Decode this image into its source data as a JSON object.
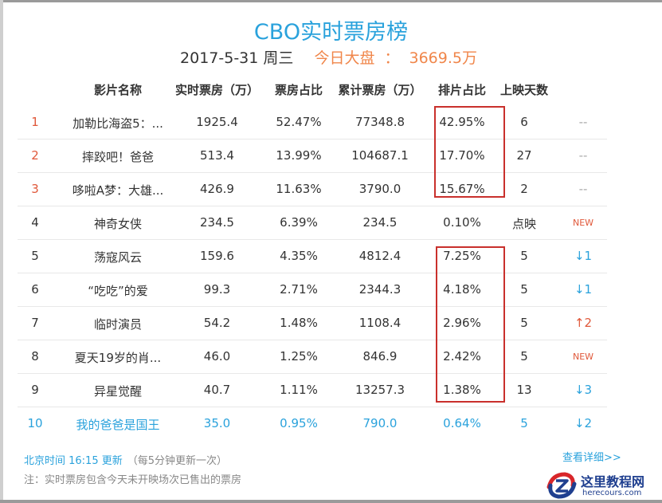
{
  "header": {
    "title": "CBO实时票房榜",
    "date": "2017-5-31 周三",
    "total_label": "今日大盘",
    "total_colon": "：",
    "total_value": "3669.5万"
  },
  "columns": [
    "影片名称",
    "实时票房（万）",
    "票房占比",
    "累计票房（万）",
    "排片占比",
    "上映天数"
  ],
  "rows": [
    {
      "rank": "1",
      "name": "加勒比海盗5：...",
      "realtime": "1925.4",
      "share": "52.47%",
      "cumulative": "77348.8",
      "schedule": "42.95%",
      "days": "6",
      "trend": "--"
    },
    {
      "rank": "2",
      "name": "摔跤吧！爸爸",
      "realtime": "513.4",
      "share": "13.99%",
      "cumulative": "104687.1",
      "schedule": "17.70%",
      "days": "27",
      "trend": "--"
    },
    {
      "rank": "3",
      "name": "哆啦A梦：大雄...",
      "realtime": "426.9",
      "share": "11.63%",
      "cumulative": "3790.0",
      "schedule": "15.67%",
      "days": "2",
      "trend": "--"
    },
    {
      "rank": "4",
      "name": "神奇女侠",
      "realtime": "234.5",
      "share": "6.39%",
      "cumulative": "234.5",
      "schedule": "0.10%",
      "days": "点映",
      "trend": "NEW"
    },
    {
      "rank": "5",
      "name": "荡寇风云",
      "realtime": "159.6",
      "share": "4.35%",
      "cumulative": "4812.4",
      "schedule": "7.25%",
      "days": "5",
      "trend": "↓1"
    },
    {
      "rank": "6",
      "name": "“吃吃”的爱",
      "realtime": "99.3",
      "share": "2.71%",
      "cumulative": "2344.3",
      "schedule": "4.18%",
      "days": "5",
      "trend": "↓1"
    },
    {
      "rank": "7",
      "name": "临时演员",
      "realtime": "54.2",
      "share": "1.48%",
      "cumulative": "1108.4",
      "schedule": "2.96%",
      "days": "5",
      "trend": "↑2"
    },
    {
      "rank": "8",
      "name": "夏天19岁的肖...",
      "realtime": "46.0",
      "share": "1.25%",
      "cumulative": "846.9",
      "schedule": "2.42%",
      "days": "5",
      "trend": "NEW"
    },
    {
      "rank": "9",
      "name": "异星觉醒",
      "realtime": "40.7",
      "share": "1.11%",
      "cumulative": "13257.3",
      "schedule": "1.38%",
      "days": "13",
      "trend": "↓3"
    },
    {
      "rank": "10",
      "name": "我的爸爸是国王",
      "realtime": "35.0",
      "share": "0.95%",
      "cumulative": "790.0",
      "schedule": "0.64%",
      "days": "5",
      "trend": "↓2"
    }
  ],
  "footer": {
    "update_time": "北京时间 16:15 更新",
    "update_note": "（每5分钟更新一次）",
    "note": "注：实时票房包含今天未开映场次已售出的票房",
    "more_link": "查看详细>>"
  },
  "watermark": {
    "name": "这里教程网",
    "url": "herecours.com"
  },
  "colors": {
    "accent": "#2aa2dc",
    "highlight": "#f0864a",
    "red": "#e0583a",
    "box": "#c9302c"
  }
}
